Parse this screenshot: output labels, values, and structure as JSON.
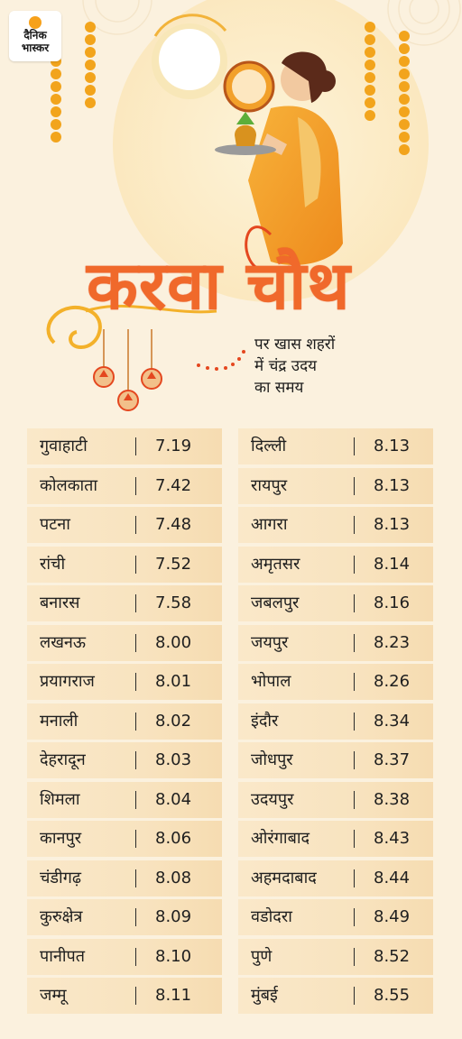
{
  "brand": {
    "logo_line1": "दैनिक",
    "logo_line2": "भास्कर"
  },
  "header": {
    "title": "करवा चौथ",
    "subtitle_line1": "पर खास शहरों",
    "subtitle_line2": "में चंद्र उदय",
    "subtitle_line3": "का समय"
  },
  "colors": {
    "background": "#fbf1de",
    "title": "#f0692b",
    "row": "#f8e3bf",
    "text": "#1f1f1f"
  },
  "table": {
    "left": [
      {
        "city": "गुवाहाटी",
        "time": "7.19"
      },
      {
        "city": "कोलकाता",
        "time": "7.42"
      },
      {
        "city": "पटना",
        "time": "7.48"
      },
      {
        "city": "रांची",
        "time": "7.52"
      },
      {
        "city": "बनारस",
        "time": "7.58"
      },
      {
        "city": "लखनऊ",
        "time": "8.00"
      },
      {
        "city": "प्रयागराज",
        "time": "8.01"
      },
      {
        "city": "मनाली",
        "time": "8.02"
      },
      {
        "city": "देहरादून",
        "time": "8.03"
      },
      {
        "city": "शिमला",
        "time": "8.04"
      },
      {
        "city": "कानपुर",
        "time": "8.06"
      },
      {
        "city": "चंडीगढ़",
        "time": "8.08"
      },
      {
        "city": "कुरुक्षेत्र",
        "time": "8.09"
      },
      {
        "city": "पानीपत",
        "time": "8.10"
      },
      {
        "city": "जम्मू",
        "time": "8.11"
      }
    ],
    "right": [
      {
        "city": "दिल्ली",
        "time": "8.13"
      },
      {
        "city": "रायपुर",
        "time": "8.13"
      },
      {
        "city": "आगरा",
        "time": "8.13"
      },
      {
        "city": "अमृतसर",
        "time": "8.14"
      },
      {
        "city": "जबलपुर",
        "time": "8.16"
      },
      {
        "city": "जयपुर",
        "time": "8.23"
      },
      {
        "city": "भोपाल",
        "time": "8.26"
      },
      {
        "city": "इंदौर",
        "time": "8.34"
      },
      {
        "city": "जोधपुर",
        "time": "8.37"
      },
      {
        "city": "उदयपुर",
        "time": "8.38"
      },
      {
        "city": "ओरंगाबाद",
        "time": "8.43"
      },
      {
        "city": "अहमदाबाद",
        "time": "8.44"
      },
      {
        "city": "वडोदरा",
        "time": "8.49"
      },
      {
        "city": "पुणे",
        "time": "8.52"
      },
      {
        "city": "मुंबई",
        "time": "8.55"
      }
    ]
  }
}
